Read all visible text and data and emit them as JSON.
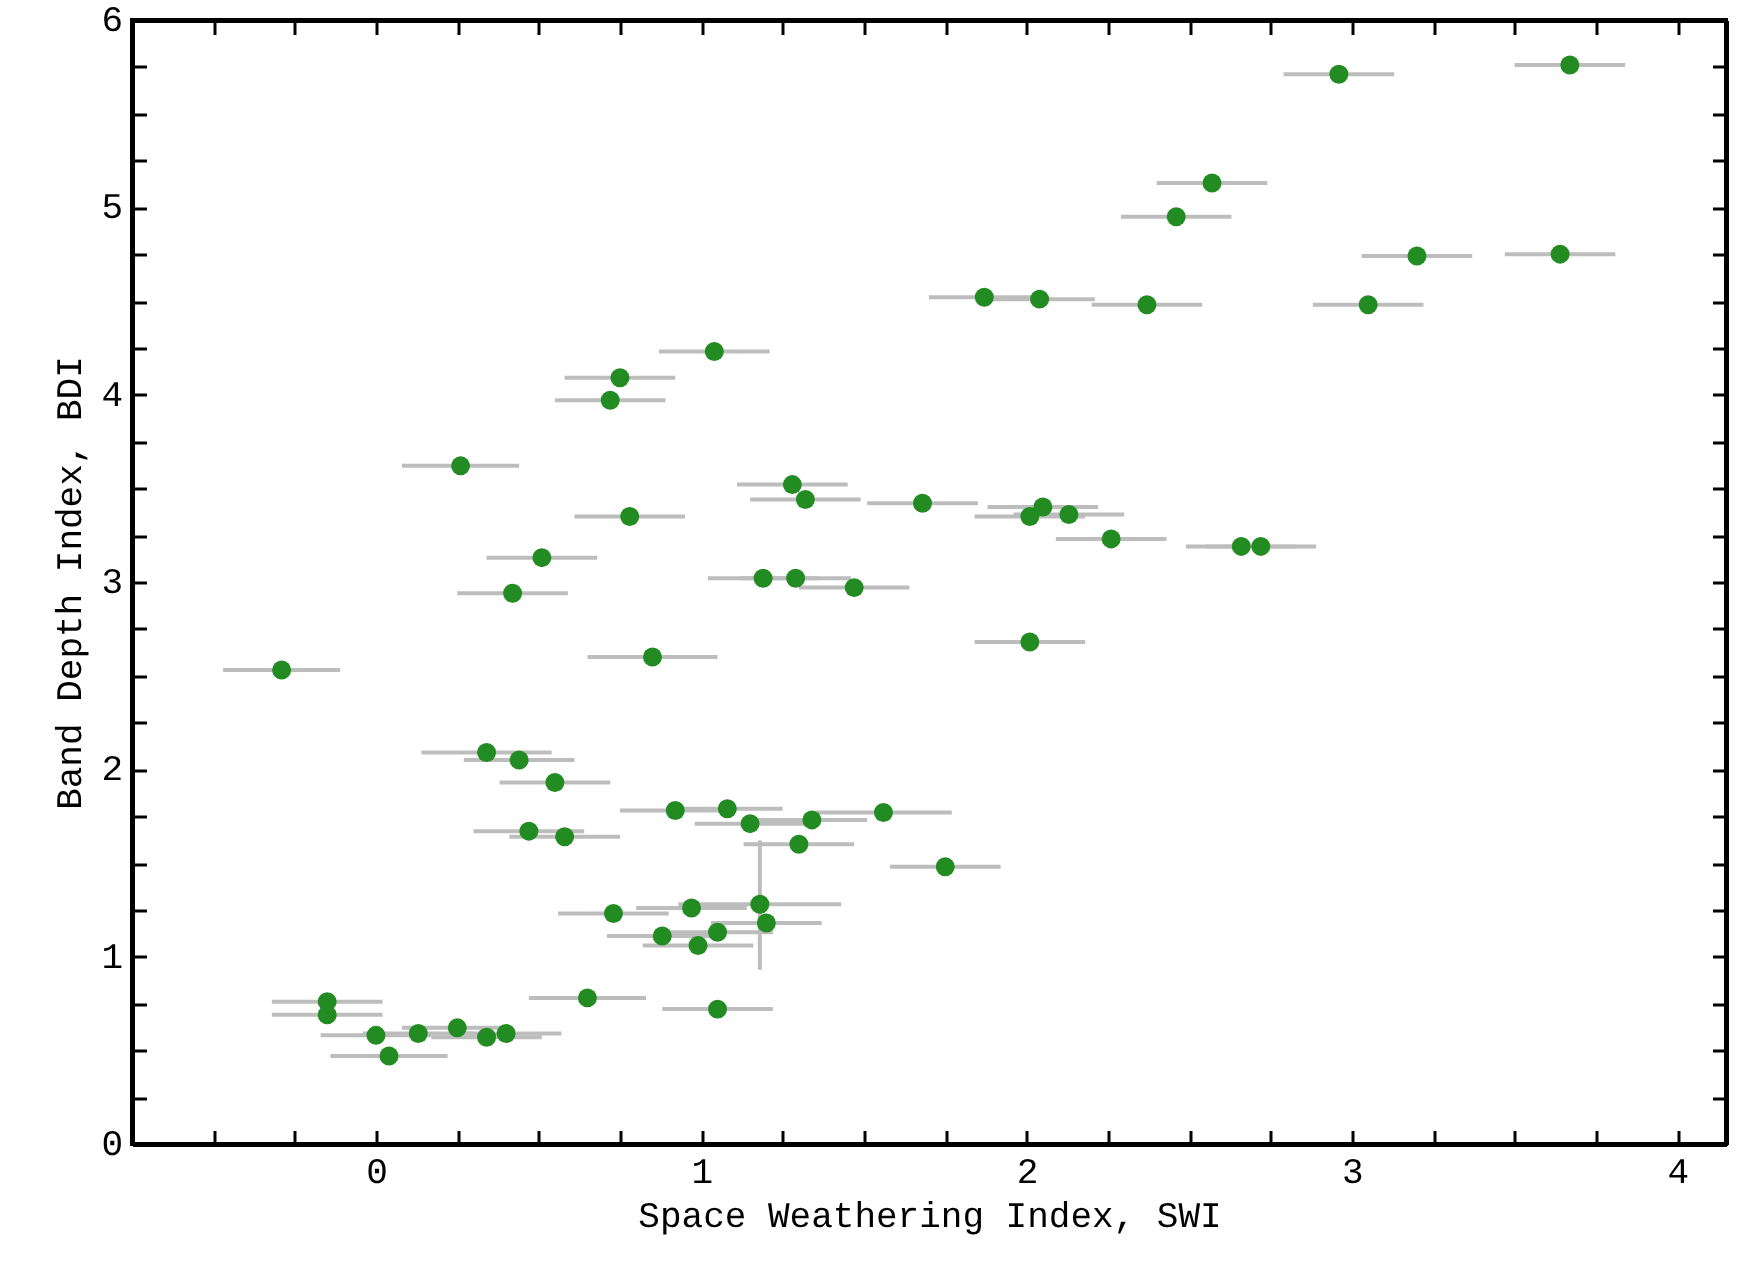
{
  "chart_data": {
    "type": "scatter",
    "xlabel": "Space Weathering Index, SWI",
    "ylabel": "Band Depth Index, BDI",
    "xlim": [
      -0.75,
      4.15
    ],
    "ylim": [
      0,
      6
    ],
    "xticks": [
      {
        "value": -0.5,
        "label": null
      },
      {
        "value": -0.25,
        "label": null
      },
      0,
      {
        "value": 0.25,
        "label": null
      },
      {
        "value": 0.5,
        "label": null
      },
      {
        "value": 0.75,
        "label": null
      },
      1,
      {
        "value": 1.25,
        "label": null
      },
      {
        "value": 1.5,
        "label": null
      },
      {
        "value": 1.75,
        "label": null
      },
      2,
      {
        "value": 2.25,
        "label": null
      },
      {
        "value": 2.5,
        "label": null
      },
      {
        "value": 2.75,
        "label": null
      },
      3,
      {
        "value": 3.25,
        "label": null
      },
      {
        "value": 3.5,
        "label": null
      },
      {
        "value": 3.75,
        "label": null
      },
      4
    ],
    "yticks": [
      0,
      {
        "value": 0.25,
        "label": null
      },
      {
        "value": 0.5,
        "label": null
      },
      {
        "value": 0.75,
        "label": null
      },
      1,
      {
        "value": 1.25,
        "label": null
      },
      {
        "value": 1.5,
        "label": null
      },
      {
        "value": 1.75,
        "label": null
      },
      2,
      {
        "value": 2.25,
        "label": null
      },
      {
        "value": 2.5,
        "label": null
      },
      {
        "value": 2.75,
        "label": null
      },
      3,
      {
        "value": 3.25,
        "label": null
      },
      {
        "value": 3.5,
        "label": null
      },
      {
        "value": 3.75,
        "label": null
      },
      4,
      {
        "value": 4.25,
        "label": null
      },
      {
        "value": 4.5,
        "label": null
      },
      {
        "value": 4.75,
        "label": null
      },
      5,
      {
        "value": 5.25,
        "label": null
      },
      {
        "value": 5.5,
        "label": null
      },
      {
        "value": 5.75,
        "label": null
      },
      6
    ],
    "grid": false,
    "marker": "circle",
    "series": [
      {
        "color": "#228b22",
        "x": [
          1.04,
          0.75,
          0.72,
          0.26,
          1.28,
          1.32,
          1.68,
          0.78,
          0.51,
          1.19,
          1.29,
          1.47,
          0.42,
          2.96,
          3.67,
          2.57,
          2.46,
          3.2,
          3.64,
          1.87,
          2.04,
          2.37,
          3.05,
          2.05,
          2.01,
          2.13,
          2.26,
          2.66,
          2.72,
          2.01,
          1.56,
          1.75,
          -0.29,
          0.85,
          0.34,
          0.44,
          0.55,
          0.92,
          1.08,
          1.15,
          1.34,
          0.47,
          0.58,
          1.3,
          0.73,
          0.97,
          1.18,
          1.2,
          0.88,
          1.05,
          0.99,
          0.65,
          1.05,
          -0.15,
          -0.15,
          0.0,
          0.13,
          0.25,
          0.34,
          0.4,
          0.04
        ],
        "values": [
          4.23,
          4.09,
          3.97,
          3.62,
          3.52,
          3.44,
          3.42,
          3.35,
          3.13,
          3.02,
          3.02,
          2.97,
          2.94,
          5.71,
          5.76,
          5.13,
          4.95,
          4.74,
          4.75,
          4.52,
          4.51,
          4.48,
          4.48,
          3.4,
          3.35,
          3.36,
          3.23,
          3.19,
          3.19,
          2.68,
          1.77,
          1.48,
          2.53,
          2.6,
          2.09,
          2.05,
          1.93,
          1.78,
          1.79,
          1.71,
          1.73,
          1.67,
          1.64,
          1.6,
          1.23,
          1.26,
          1.28,
          1.18,
          1.11,
          1.13,
          1.06,
          0.78,
          0.72,
          0.76,
          0.69,
          0.58,
          0.59,
          0.62,
          0.57,
          0.59,
          0.47
        ],
        "xerrors": [
          0.17,
          0.17,
          0.17,
          0.18,
          0.17,
          0.17,
          0.17,
          0.17,
          0.17,
          0.17,
          0.17,
          0.17,
          0.17,
          0.17,
          0.17,
          0.17,
          0.17,
          0.17,
          0.17,
          0.17,
          0.17,
          0.17,
          0.17,
          0.17,
          0.17,
          0.17,
          0.17,
          0.17,
          0.17,
          0.17,
          0.21,
          0.17,
          0.18,
          0.2,
          0.2,
          0.17,
          0.17,
          0.17,
          0.17,
          0.17,
          0.17,
          0.17,
          0.17,
          0.17,
          0.17,
          0.17,
          0.25,
          0.17,
          0.17,
          0.17,
          0.17,
          0.18,
          0.17,
          0.17,
          0.17,
          0.17,
          0.17,
          0.17,
          0.17,
          0.17,
          0.18
        ],
        "errors": [
          null,
          null,
          null,
          null,
          null,
          null,
          null,
          null,
          null,
          null,
          null,
          null,
          null,
          null,
          null,
          null,
          null,
          null,
          null,
          null,
          null,
          null,
          null,
          null,
          null,
          null,
          null,
          null,
          null,
          null,
          null,
          null,
          null,
          null,
          null,
          null,
          null,
          null,
          null,
          null,
          null,
          null,
          null,
          null,
          null,
          null,
          [
            0.93,
            1.62
          ],
          null,
          null,
          null,
          null,
          null,
          null,
          null,
          null,
          null,
          null,
          null,
          null,
          null,
          null
        ]
      }
    ]
  }
}
